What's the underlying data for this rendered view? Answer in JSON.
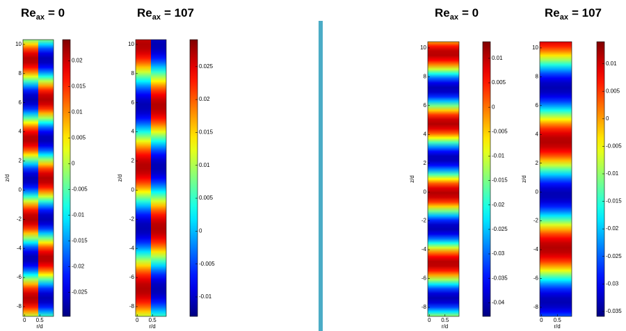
{
  "panels": [
    {
      "title": {
        "base": "Re",
        "sub": "ax",
        "rest": "= 0"
      },
      "xlabel": "r/d",
      "ylabel": "z/d",
      "xlim": [
        -0.05,
        0.95
      ],
      "xticks": [
        0,
        0.5
      ],
      "ylim": [
        -8.67,
        10.33
      ],
      "yticks": [
        10,
        8,
        6,
        4,
        2,
        0,
        -2,
        -4,
        -6,
        -8
      ],
      "colorbar": {
        "lim": [
          -0.0297,
          0.0241
        ],
        "ticks": [
          0.02,
          0.015,
          0.01,
          0.005,
          0,
          -0.005,
          -0.01,
          -0.015,
          -0.02,
          -0.025
        ]
      }
    },
    {
      "title": {
        "base": "Re",
        "sub": "ax",
        "rest": "= 107"
      },
      "xlabel": "r/d",
      "ylabel": "z/d",
      "xlim": [
        -0.05,
        0.95
      ],
      "xticks": [
        0,
        0.5
      ],
      "ylim": [
        -8.67,
        10.33
      ],
      "yticks": [
        10,
        8,
        6,
        4,
        2,
        0,
        -2,
        -4,
        -6,
        -8
      ],
      "colorbar": {
        "lim": [
          -0.01296,
          0.0291
        ],
        "ticks": [
          0.025,
          0.02,
          0.015,
          0.01,
          0.005,
          0,
          -0.005,
          -0.01
        ]
      }
    },
    {
      "title": {
        "base": "Re",
        "sub": "ax",
        "rest": "= 0"
      },
      "xlabel": "r/d",
      "ylabel": "z/d",
      "xlim": [
        -0.05,
        0.95
      ],
      "xticks": [
        0,
        0.5
      ],
      "ylim": [
        -8.63,
        10.43
      ],
      "yticks": [
        10,
        8,
        6,
        4,
        2,
        0,
        -2,
        -4,
        -6,
        -8
      ],
      "colorbar": {
        "lim": [
          -0.0428,
          0.0134
        ],
        "ticks": [
          0.01,
          0.005,
          0,
          -0.005,
          -0.01,
          -0.015,
          -0.02,
          -0.025,
          -0.03,
          -0.035,
          -0.04
        ]
      }
    },
    {
      "title": {
        "base": "Re",
        "sub": "ax",
        "rest": "= 107"
      },
      "xlabel": "r/d",
      "ylabel": "z/d",
      "xlim": [
        -0.05,
        0.95
      ],
      "xticks": [
        0,
        0.5
      ],
      "ylim": [
        -8.63,
        10.43
      ],
      "yticks": [
        10,
        8,
        6,
        4,
        2,
        0,
        -2,
        -4,
        -6,
        -8
      ],
      "colorbar": {
        "lim": [
          -0.0359,
          0.014
        ],
        "ticks": [
          0.01,
          0.005,
          0,
          -0.005,
          -0.01,
          -0.015,
          -0.02,
          -0.025,
          -0.03,
          -0.035
        ]
      }
    }
  ]
}
